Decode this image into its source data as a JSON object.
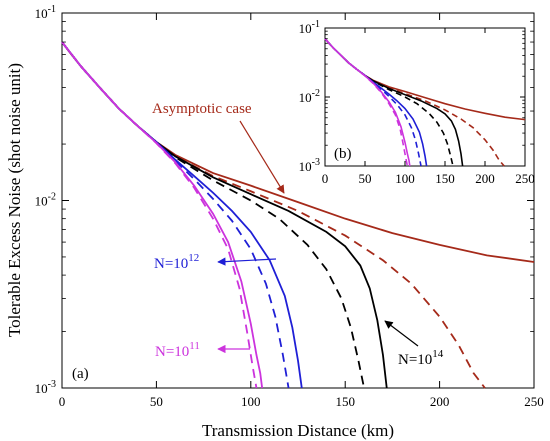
{
  "colors": {
    "asymptotic": "#a52a1a",
    "n14": "#000000",
    "n12": "#1f1fd6",
    "n11": "#cc33dd"
  },
  "chart_data": [
    {
      "type": "line",
      "panel_label": "(a)",
      "xlabel": "Transmission Distance (km)",
      "ylabel": "Tolerable Excess Noise (shot noise unit)",
      "xlim": [
        0,
        250
      ],
      "ylim": [
        0.001,
        0.1
      ],
      "yscale": "log",
      "x_ticks": [
        "0",
        "50",
        "100",
        "150",
        "200",
        "250"
      ],
      "y_ticks": [
        {
          "base": "10",
          "exp": "-3",
          "value": 0.001
        },
        {
          "base": "10",
          "exp": "-2",
          "value": 0.01
        },
        {
          "base": "10",
          "exp": "-1",
          "value": 0.1
        }
      ],
      "annotations": [
        {
          "text": "Asymptotic case",
          "color": "#a52a1a"
        },
        {
          "base": "N=10",
          "exp": "12",
          "color": "#1f1fd6"
        },
        {
          "base": "N=10",
          "exp": "11",
          "color": "#cc33dd"
        },
        {
          "base": "N=10",
          "exp": "14",
          "color": "#000000"
        }
      ],
      "series": [
        {
          "key": "asym_solid",
          "color": "#a52a1a",
          "dash": "solid",
          "x": [
            0,
            5,
            10,
            20,
            30,
            40,
            50,
            60,
            80,
            100,
            125,
            150,
            175,
            200,
            225,
            250
          ],
          "y": [
            0.07,
            0.06,
            0.052,
            0.04,
            0.031,
            0.025,
            0.0205,
            0.0175,
            0.014,
            0.012,
            0.0098,
            0.008,
            0.0067,
            0.0058,
            0.0051,
            0.0047
          ]
        },
        {
          "key": "asym_dashed",
          "color": "#a52a1a",
          "dash": "dashed",
          "x": [
            0,
            10,
            20,
            30,
            40,
            50,
            60,
            80,
            100,
            125,
            150,
            170,
            185,
            200,
            210,
            218,
            224
          ],
          "y": [
            0.07,
            0.052,
            0.04,
            0.031,
            0.025,
            0.0205,
            0.0172,
            0.0135,
            0.0112,
            0.0088,
            0.0065,
            0.0048,
            0.0036,
            0.0024,
            0.0017,
            0.0012,
            0.001
          ]
        },
        {
          "key": "n14_solid",
          "color": "#000000",
          "dash": "solid",
          "x": [
            0,
            10,
            20,
            30,
            40,
            50,
            60,
            80,
            100,
            120,
            140,
            150,
            158,
            163,
            167,
            170,
            172
          ],
          "y": [
            0.07,
            0.052,
            0.04,
            0.031,
            0.025,
            0.0205,
            0.0172,
            0.0133,
            0.0108,
            0.0088,
            0.0068,
            0.0057,
            0.0045,
            0.0034,
            0.0023,
            0.0015,
            0.001
          ]
        },
        {
          "key": "n14_dashed",
          "color": "#000000",
          "dash": "dashed",
          "x": [
            0,
            10,
            20,
            30,
            40,
            50,
            60,
            80,
            100,
            115,
            130,
            140,
            148,
            153,
            157,
            160
          ],
          "y": [
            0.07,
            0.052,
            0.04,
            0.031,
            0.025,
            0.0205,
            0.017,
            0.0128,
            0.01,
            0.008,
            0.0058,
            0.0043,
            0.003,
            0.0021,
            0.0014,
            0.001
          ]
        },
        {
          "key": "n12_solid",
          "color": "#1f1fd6",
          "dash": "solid",
          "x": [
            0,
            10,
            20,
            30,
            40,
            50,
            60,
            70,
            80,
            90,
            100,
            110,
            118,
            122,
            125,
            127
          ],
          "y": [
            0.07,
            0.052,
            0.04,
            0.031,
            0.025,
            0.0205,
            0.0165,
            0.0135,
            0.011,
            0.0088,
            0.0068,
            0.0048,
            0.0031,
            0.0021,
            0.0014,
            0.001
          ]
        },
        {
          "key": "n12_dashed",
          "color": "#1f1fd6",
          "dash": "dashed",
          "x": [
            0,
            10,
            20,
            30,
            40,
            50,
            60,
            70,
            80,
            90,
            100,
            108,
            113,
            117,
            120
          ],
          "y": [
            0.07,
            0.052,
            0.04,
            0.031,
            0.025,
            0.0205,
            0.0163,
            0.013,
            0.0102,
            0.0078,
            0.0055,
            0.0036,
            0.0024,
            0.0015,
            0.001
          ]
        },
        {
          "key": "n11_solid",
          "color": "#cc33dd",
          "dash": "solid",
          "x": [
            0,
            10,
            20,
            30,
            40,
            50,
            60,
            70,
            80,
            88,
            95,
            100,
            103,
            105,
            106
          ],
          "y": [
            0.07,
            0.052,
            0.04,
            0.031,
            0.025,
            0.0203,
            0.016,
            0.012,
            0.0085,
            0.006,
            0.0037,
            0.0022,
            0.0015,
            0.0012,
            0.001
          ]
        },
        {
          "key": "n11_dashed",
          "color": "#cc33dd",
          "dash": "dashed",
          "x": [
            0,
            10,
            20,
            30,
            40,
            50,
            60,
            70,
            80,
            88,
            94,
            98,
            101,
            103
          ],
          "y": [
            0.07,
            0.052,
            0.04,
            0.031,
            0.025,
            0.0202,
            0.0158,
            0.0117,
            0.008,
            0.0055,
            0.0034,
            0.002,
            0.0013,
            0.001
          ]
        }
      ]
    },
    {
      "type": "line",
      "panel_label": "(b)",
      "xlim": [
        0,
        250
      ],
      "ylim": [
        0.001,
        0.1
      ],
      "yscale": "log",
      "x_ticks": [
        "0",
        "50",
        "100",
        "150",
        "200",
        "250"
      ],
      "y_ticks": [
        {
          "base": "10",
          "exp": "-3",
          "value": 0.001
        },
        {
          "base": "10",
          "exp": "-2",
          "value": 0.01
        },
        {
          "base": "10",
          "exp": "-1",
          "value": 0.1
        }
      ],
      "series_ref": "same as panel (a)"
    }
  ]
}
